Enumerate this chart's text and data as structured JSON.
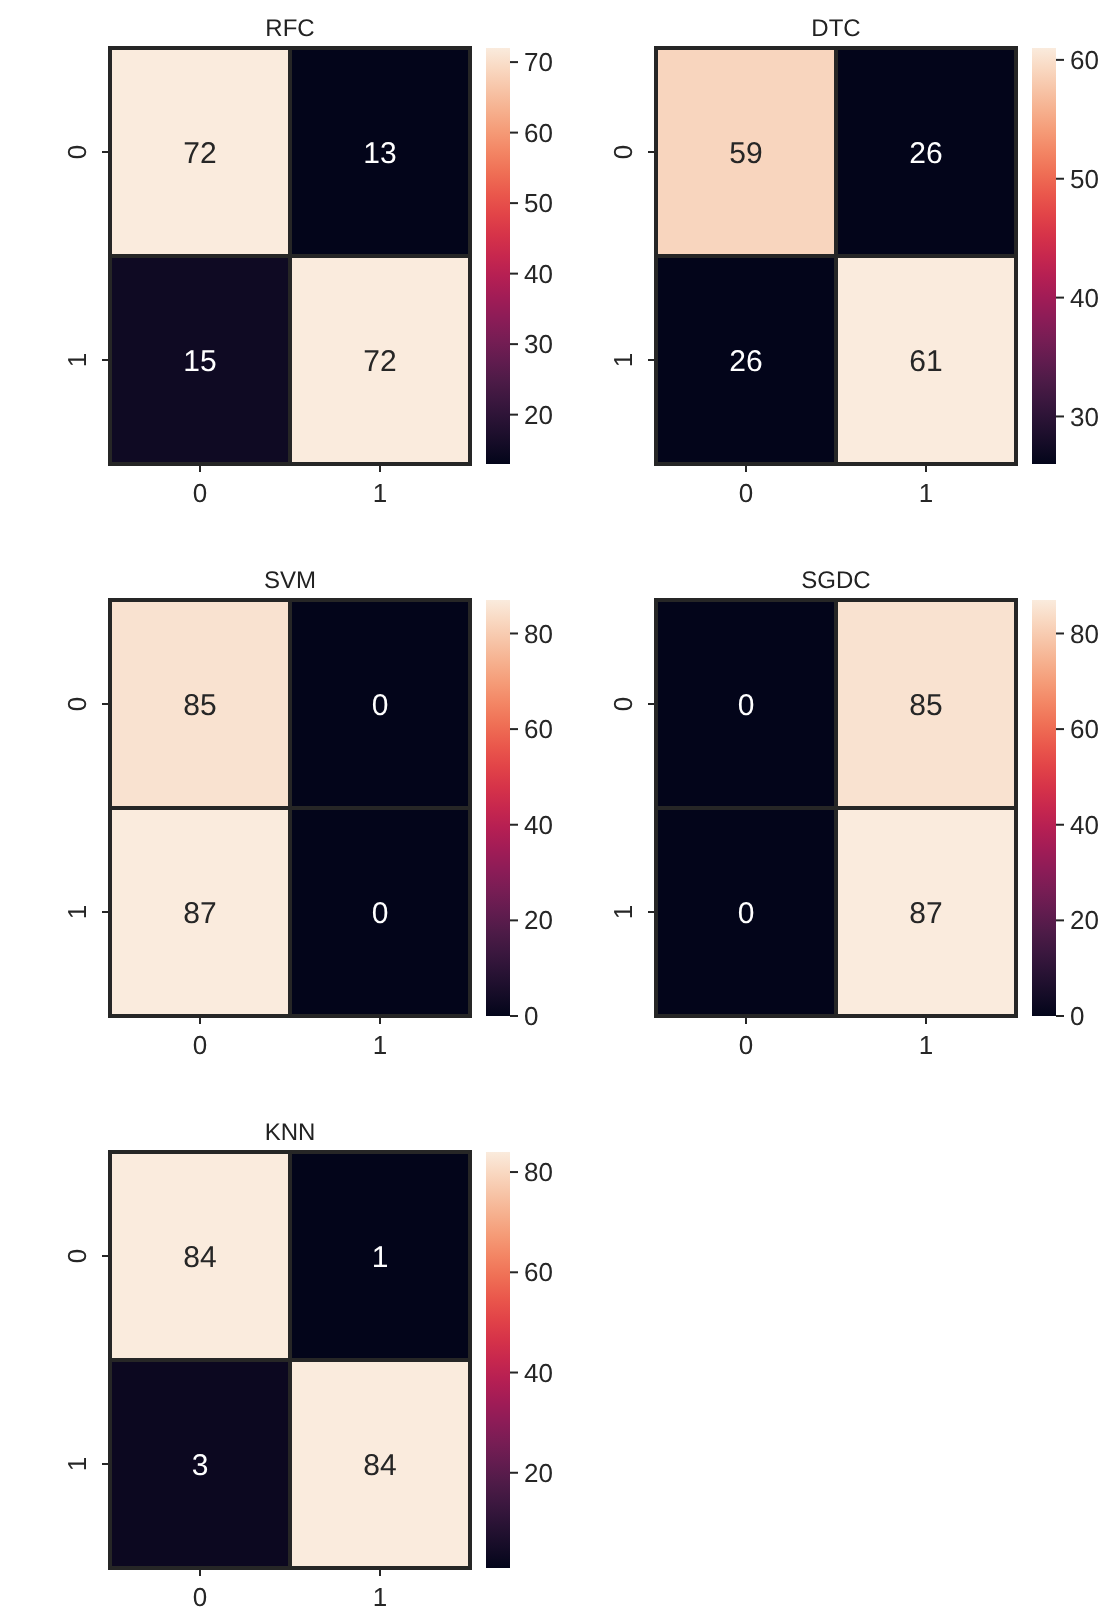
{
  "chart_data": [
    {
      "type": "heatmap",
      "title": "RFC",
      "categories": [
        "0",
        "1"
      ],
      "y_categories": [
        "0",
        "1"
      ],
      "cells": [
        [
          72,
          13
        ],
        [
          15,
          72
        ]
      ],
      "data_labels": true,
      "clim": [
        13,
        72
      ],
      "cticks": [
        20,
        30,
        40,
        50,
        60,
        70
      ]
    },
    {
      "type": "heatmap",
      "title": "DTC",
      "categories": [
        "0",
        "1"
      ],
      "y_categories": [
        "0",
        "1"
      ],
      "cells": [
        [
          59,
          26
        ],
        [
          26,
          61
        ]
      ],
      "data_labels": true,
      "clim": [
        26,
        61
      ],
      "cticks": [
        30,
        40,
        50,
        60
      ]
    },
    {
      "type": "heatmap",
      "title": "SVM",
      "categories": [
        "0",
        "1"
      ],
      "y_categories": [
        "0",
        "1"
      ],
      "cells": [
        [
          85,
          0
        ],
        [
          87,
          0
        ]
      ],
      "data_labels": true,
      "clim": [
        0,
        87
      ],
      "cticks": [
        0,
        20,
        40,
        60,
        80
      ]
    },
    {
      "type": "heatmap",
      "title": "SGDC",
      "categories": [
        "0",
        "1"
      ],
      "y_categories": [
        "0",
        "1"
      ],
      "cells": [
        [
          0,
          85
        ],
        [
          0,
          87
        ]
      ],
      "data_labels": true,
      "clim": [
        0,
        87
      ],
      "cticks": [
        0,
        20,
        40,
        60,
        80
      ]
    },
    {
      "type": "heatmap",
      "title": "KNN",
      "categories": [
        "0",
        "1"
      ],
      "y_categories": [
        "0",
        "1"
      ],
      "cells": [
        [
          84,
          1
        ],
        [
          3,
          84
        ]
      ],
      "data_labels": true,
      "clim": [
        1,
        84
      ],
      "cticks": [
        20,
        40,
        60,
        80
      ]
    }
  ]
}
